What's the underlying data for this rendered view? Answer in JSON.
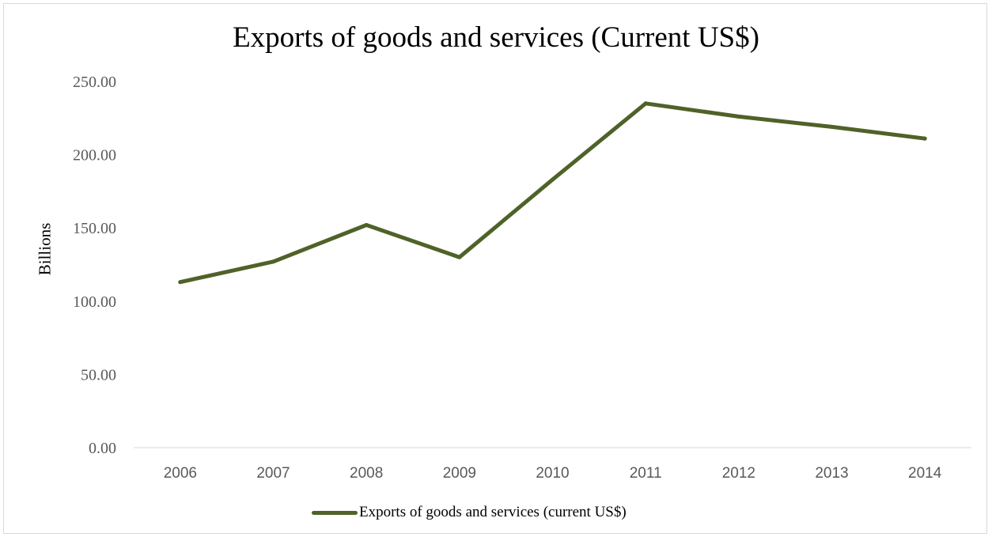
{
  "chart_data": {
    "type": "line",
    "title": "Exports of goods and services (Current US$)",
    "xlabel": "",
    "ylabel": "Billions",
    "x": [
      "2006",
      "2007",
      "2008",
      "2009",
      "2010",
      "2011",
      "2012",
      "2013",
      "2014"
    ],
    "series": [
      {
        "name": "Exports of goods and services (current US$)",
        "values": [
          113,
          127,
          152,
          130,
          183,
          235,
          226,
          219,
          211
        ],
        "color": "#4f6228"
      }
    ],
    "ylim": [
      0,
      250
    ],
    "yticks": [
      "0.00",
      "50.00",
      "100.00",
      "150.00",
      "200.00",
      "250.00"
    ],
    "grid": false,
    "legend_position": "bottom"
  }
}
